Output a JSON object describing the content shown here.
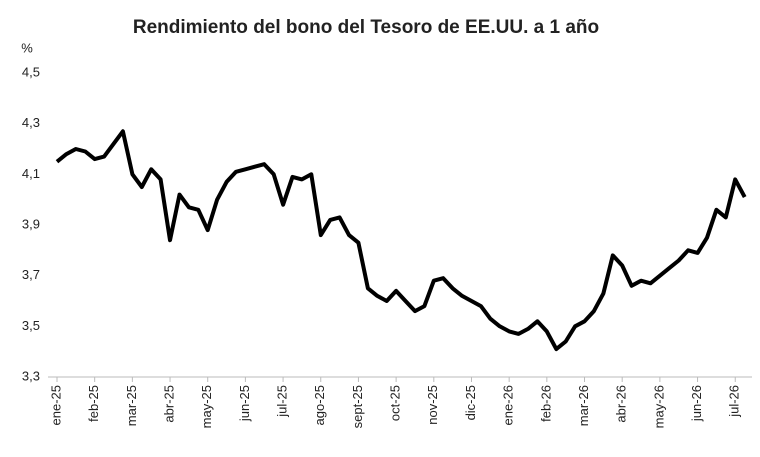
{
  "chart_data": {
    "type": "line",
    "title": "Rendimiento del bono del Tesoro de EE.UU. a 1 año",
    "y_label": "%",
    "categories": [
      "ene-25",
      null,
      null,
      null,
      "feb-25",
      null,
      null,
      null,
      "mar-25",
      null,
      null,
      null,
      "abr-25",
      null,
      null,
      null,
      "may-25",
      null,
      null,
      null,
      "jun-25",
      null,
      null,
      null,
      "jul-25",
      null,
      null,
      null,
      "ago-25",
      null,
      null,
      null,
      "sept-25",
      null,
      null,
      null,
      "oct-25",
      null,
      null,
      null,
      "nov-25",
      null,
      null,
      null,
      "dic-25",
      null,
      null,
      null,
      "ene-26",
      null,
      null,
      null,
      "feb-26",
      null,
      null,
      null,
      "mar-26",
      null,
      null,
      null,
      "abr-26",
      null,
      null,
      null,
      "may-26",
      null,
      null,
      null,
      "jun-26",
      null,
      null,
      null,
      "jul-26",
      null
    ],
    "series": [
      {
        "color": "#000000",
        "values": [
          4.15,
          4.18,
          4.2,
          4.19,
          4.16,
          4.17,
          4.22,
          4.27,
          4.1,
          4.05,
          4.12,
          4.08,
          3.84,
          4.02,
          3.97,
          3.96,
          3.88,
          4.0,
          4.07,
          4.11,
          4.12,
          4.13,
          4.14,
          4.1,
          3.98,
          4.09,
          4.08,
          4.1,
          3.86,
          3.92,
          3.93,
          3.86,
          3.83,
          3.65,
          3.62,
          3.6,
          3.64,
          3.6,
          3.56,
          3.58,
          3.68,
          3.69,
          3.65,
          3.62,
          3.6,
          3.58,
          3.53,
          3.5,
          3.48,
          3.47,
          3.49,
          3.52,
          3.48,
          3.41,
          3.44,
          3.5,
          3.52,
          3.56,
          3.63,
          3.78,
          3.74,
          3.66,
          3.68,
          3.67,
          3.7,
          3.73,
          3.76,
          3.8,
          3.79,
          3.85,
          3.96,
          3.93,
          4.08,
          4.01
        ]
      }
    ],
    "ylim": [
      3.3,
      4.5
    ],
    "yticks": [
      {
        "value": 3.3,
        "label": "3,3"
      },
      {
        "value": 3.5,
        "label": "3,5"
      },
      {
        "value": 3.7,
        "label": "3,7"
      },
      {
        "value": 3.9,
        "label": "3,9"
      },
      {
        "value": 4.1,
        "label": "4,1"
      },
      {
        "value": 4.3,
        "label": "4,3"
      },
      {
        "value": 4.5,
        "label": "4,5"
      }
    ],
    "grid": false
  }
}
